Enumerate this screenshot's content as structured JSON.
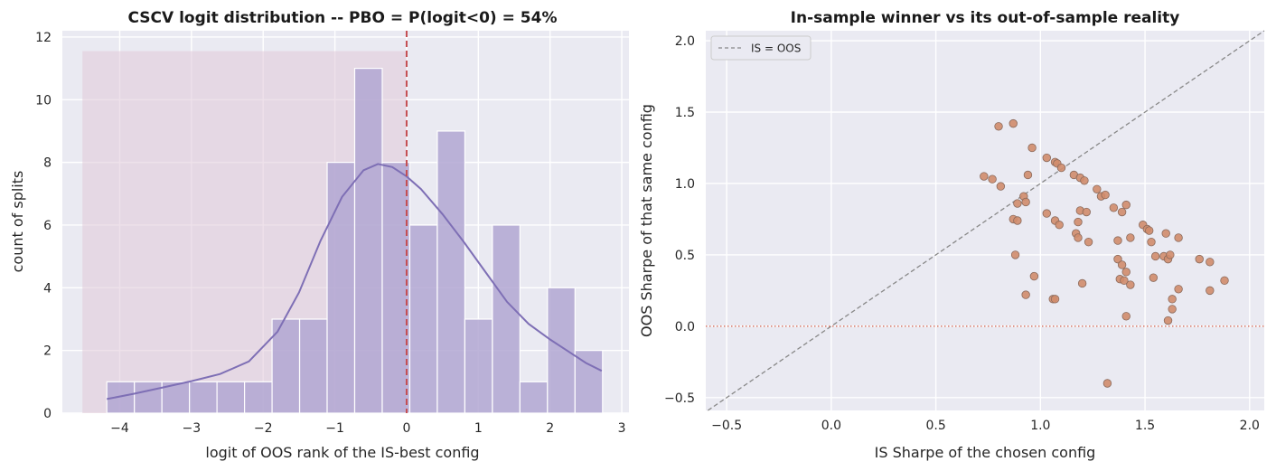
{
  "chart_data": [
    {
      "type": "bar",
      "title": "CSCV logit distribution -- PBO = P(logit<0) = 54%",
      "xlabel": "logit of OOS rank of the IS-best config",
      "ylabel": "count of splits",
      "xlim": [
        -4.8,
        3.1
      ],
      "ylim": [
        0,
        12.2
      ],
      "xticks": [
        -4,
        -3,
        -2,
        -1,
        0,
        1,
        2,
        3
      ],
      "yticks": [
        0,
        2,
        4,
        6,
        8,
        10,
        12
      ],
      "grid": true,
      "bin_width": 0.384,
      "bins": [
        {
          "x0": -4.18,
          "count": 1
        },
        {
          "x0": -3.796,
          "count": 1
        },
        {
          "x0": -3.412,
          "count": 1
        },
        {
          "x0": -3.028,
          "count": 1
        },
        {
          "x0": -2.644,
          "count": 1
        },
        {
          "x0": -2.26,
          "count": 1
        },
        {
          "x0": -1.876,
          "count": 3
        },
        {
          "x0": -1.492,
          "count": 3
        },
        {
          "x0": -1.108,
          "count": 8
        },
        {
          "x0": -0.724,
          "count": 11
        },
        {
          "x0": -0.34,
          "count": 8
        },
        {
          "x0": 0.044,
          "count": 6
        },
        {
          "x0": 0.428,
          "count": 9
        },
        {
          "x0": 0.812,
          "count": 3
        },
        {
          "x0": 1.196,
          "count": 6
        },
        {
          "x0": 1.58,
          "count": 1
        },
        {
          "x0": 1.964,
          "count": 4
        },
        {
          "x0": 2.348,
          "count": 2
        }
      ],
      "kde": {
        "x": [
          -4.18,
          -3.8,
          -3.4,
          -3.0,
          -2.6,
          -2.2,
          -1.8,
          -1.5,
          -1.2,
          -0.9,
          -0.6,
          -0.4,
          -0.2,
          0.0,
          0.2,
          0.5,
          0.8,
          1.1,
          1.4,
          1.7,
          2.0,
          2.3,
          2.5,
          2.72
        ],
        "y": [
          0.45,
          0.62,
          0.82,
          1.02,
          1.25,
          1.65,
          2.6,
          3.85,
          5.5,
          6.9,
          7.75,
          7.95,
          7.85,
          7.55,
          7.15,
          6.35,
          5.45,
          4.5,
          3.55,
          2.85,
          2.35,
          1.9,
          1.6,
          1.35
        ]
      },
      "shaded_region": {
        "x": [
          -4.52,
          0.0
        ],
        "y_top": 11.55
      },
      "vline_x": 0,
      "colors": {
        "bar": "#b2a7d2",
        "kde": "#7e6fb5",
        "shade": "#e0c8d8",
        "vline": "#c44e52"
      }
    },
    {
      "type": "scatter",
      "title": "In-sample winner vs its out-of-sample reality",
      "xlabel": "IS Sharpe of the chosen config",
      "ylabel": "OOS Sharpe of that same config",
      "xlim": [
        -0.6,
        2.07
      ],
      "ylim": [
        -0.59,
        2.07
      ],
      "xticks": [
        -0.5,
        0.0,
        0.5,
        1.0,
        1.5,
        2.0
      ],
      "yticks": [
        -0.5,
        0.0,
        0.5,
        1.0,
        1.5,
        2.0
      ],
      "grid": true,
      "legend": {
        "label": "IS = OOS",
        "placement": "top-left"
      },
      "hline_y": 0,
      "colors": {
        "point": "#d08c6c",
        "point_edge": "#8a6a5c",
        "identity": "#888888",
        "hline": "#d4604a"
      },
      "points": [
        [
          0.8,
          1.4
        ],
        [
          0.87,
          1.42
        ],
        [
          0.73,
          1.05
        ],
        [
          0.77,
          1.03
        ],
        [
          0.81,
          0.98
        ],
        [
          0.96,
          1.25
        ],
        [
          0.94,
          1.06
        ],
        [
          1.03,
          1.18
        ],
        [
          1.07,
          1.15
        ],
        [
          1.08,
          1.14
        ],
        [
          1.1,
          1.11
        ],
        [
          1.16,
          1.06
        ],
        [
          1.19,
          1.04
        ],
        [
          1.21,
          1.02
        ],
        [
          1.27,
          0.96
        ],
        [
          1.29,
          0.91
        ],
        [
          1.31,
          0.92
        ],
        [
          0.89,
          0.86
        ],
        [
          0.92,
          0.91
        ],
        [
          0.93,
          0.87
        ],
        [
          0.87,
          0.75
        ],
        [
          0.89,
          0.74
        ],
        [
          1.03,
          0.79
        ],
        [
          1.07,
          0.74
        ],
        [
          1.09,
          0.71
        ],
        [
          1.19,
          0.81
        ],
        [
          1.22,
          0.8
        ],
        [
          1.18,
          0.73
        ],
        [
          1.17,
          0.65
        ],
        [
          1.18,
          0.62
        ],
        [
          1.23,
          0.59
        ],
        [
          1.35,
          0.83
        ],
        [
          1.39,
          0.8
        ],
        [
          1.41,
          0.85
        ],
        [
          1.37,
          0.6
        ],
        [
          1.43,
          0.62
        ],
        [
          1.49,
          0.71
        ],
        [
          1.51,
          0.68
        ],
        [
          1.52,
          0.67
        ],
        [
          1.53,
          0.59
        ],
        [
          1.6,
          0.65
        ],
        [
          1.66,
          0.62
        ],
        [
          1.37,
          0.47
        ],
        [
          1.39,
          0.43
        ],
        [
          1.41,
          0.38
        ],
        [
          1.38,
          0.33
        ],
        [
          1.4,
          0.32
        ],
        [
          1.43,
          0.29
        ],
        [
          1.55,
          0.49
        ],
        [
          1.59,
          0.49
        ],
        [
          1.61,
          0.47
        ],
        [
          1.62,
          0.5
        ],
        [
          1.76,
          0.47
        ],
        [
          1.81,
          0.45
        ],
        [
          1.54,
          0.34
        ],
        [
          1.66,
          0.26
        ],
        [
          1.63,
          0.19
        ],
        [
          1.63,
          0.12
        ],
        [
          1.61,
          0.04
        ],
        [
          1.81,
          0.25
        ],
        [
          1.88,
          0.32
        ],
        [
          0.88,
          0.5
        ],
        [
          0.97,
          0.35
        ],
        [
          0.93,
          0.22
        ],
        [
          1.06,
          0.19
        ],
        [
          1.07,
          0.19
        ],
        [
          1.2,
          0.3
        ],
        [
          1.41,
          0.07
        ],
        [
          1.32,
          -0.4
        ]
      ]
    }
  ]
}
